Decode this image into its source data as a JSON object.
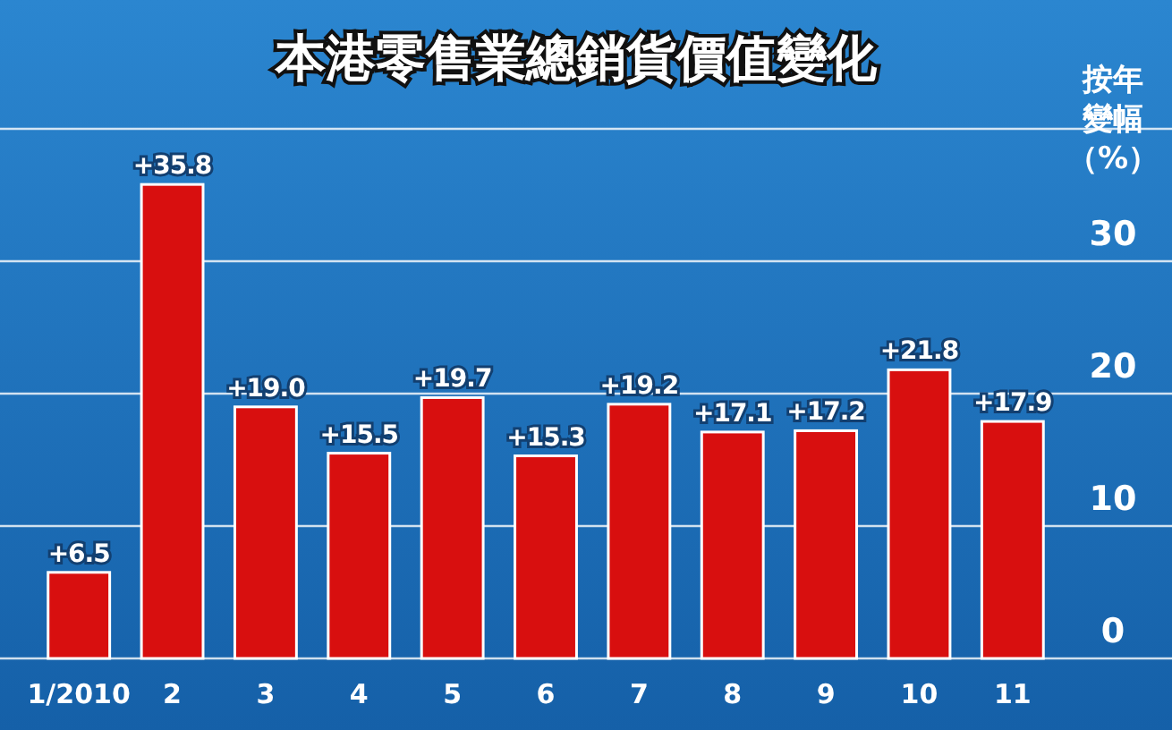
{
  "chart_data": {
    "type": "bar",
    "title": "本港零售業總銷貨價值變化",
    "ylabel": "按年變幅（%）",
    "categories": [
      "1/2010",
      "2",
      "3",
      "4",
      "5",
      "6",
      "7",
      "8",
      "9",
      "10",
      "11"
    ],
    "values": [
      6.5,
      35.8,
      19.0,
      15.5,
      19.7,
      15.3,
      19.2,
      17.1,
      17.2,
      21.8,
      17.9
    ],
    "value_labels": [
      "+6.5",
      "+35.8",
      "+19.0",
      "+15.5",
      "+19.7",
      "+15.3",
      "+19.2",
      "+17.1",
      "+17.2",
      "+21.8",
      "+17.9"
    ],
    "color": "#d80f0f",
    "ylim": [
      0,
      40
    ],
    "yticks": [
      0,
      10,
      20,
      30
    ],
    "grid": "y"
  }
}
